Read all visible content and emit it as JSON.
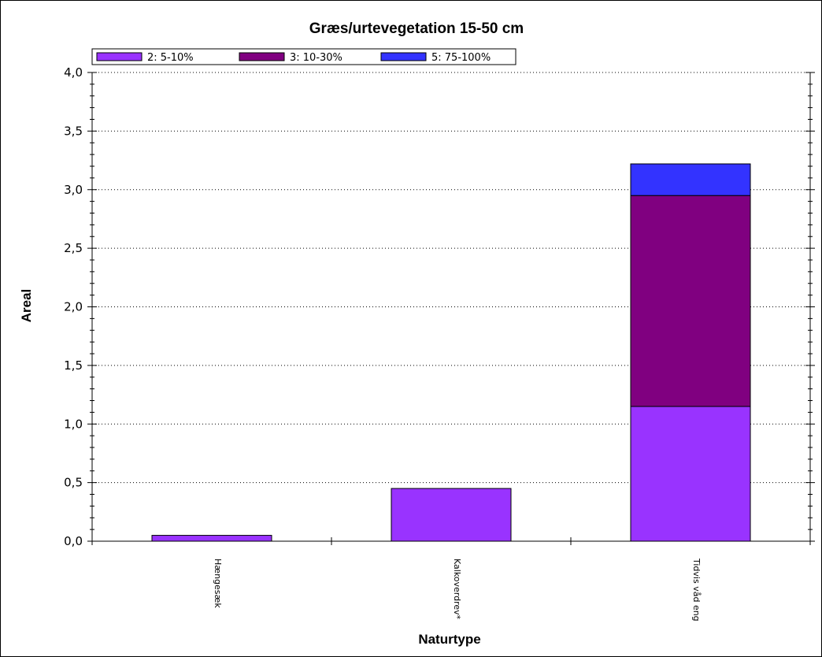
{
  "chart_data": {
    "type": "bar",
    "stacked": true,
    "title": "Græs/urtevegetation 15-50 cm",
    "xlabel": "Naturtype",
    "ylabel": "Areal",
    "ylim": [
      0,
      4
    ],
    "yticks": [
      "0,0",
      "0,5",
      "1,0",
      "1,5",
      "2,0",
      "2,5",
      "3,0",
      "3,5",
      "4,0"
    ],
    "grid": true,
    "legend_position": "top-left",
    "categories": [
      "Hængesæk",
      "Kalkoverdrev*",
      "Tidvis våd eng"
    ],
    "series": [
      {
        "name": "2: 5-10%",
        "color": "#9933ff",
        "values": [
          0.05,
          0.45,
          1.15
        ]
      },
      {
        "name": "3: 10-30%",
        "color": "#800080",
        "values": [
          0,
          0,
          1.8
        ]
      },
      {
        "name": "5: 75-100%",
        "color": "#3333ff",
        "values": [
          0,
          0,
          0.27
        ]
      }
    ]
  }
}
